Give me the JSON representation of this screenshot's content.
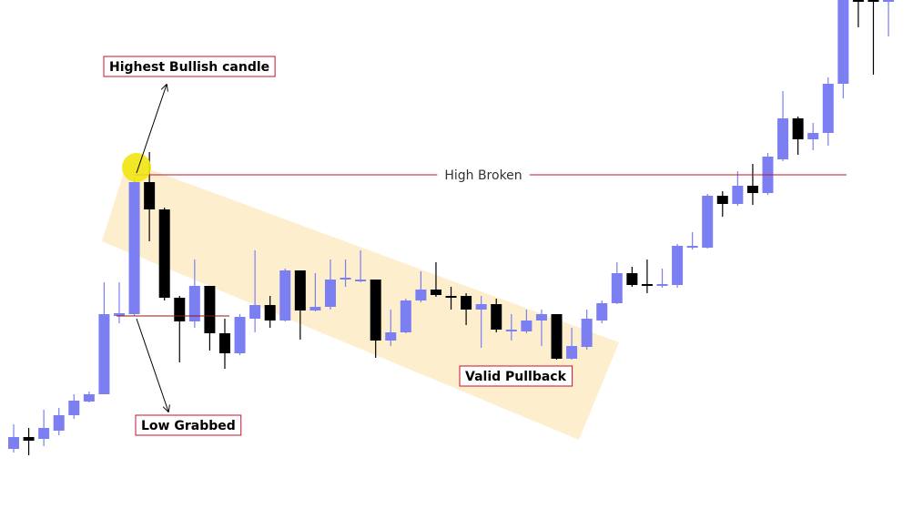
{
  "chart_data": {
    "type": "candlestick",
    "up_color": "#7b7ff2",
    "down_color": "#000000",
    "ylim": [
      0,
      570
    ],
    "open": [
      77,
      90,
      88,
      97,
      114,
      129,
      137,
      223,
      225,
      370,
      340,
      243,
      217,
      256,
      204,
      182,
      220,
      235,
      218,
      273,
      229,
      233,
      263,
      261,
      263,
      196,
      205,
      240,
      252,
      245,
      245,
      230,
      236,
      206,
      206,
      218,
      225,
      176,
      189,
      218,
      237,
      270,
      258,
      256,
      257,
      298,
      298,
      355,
      346,
      366,
      358,
      395,
      440,
      417,
      424,
      478,
      572,
      572,
      568
    ],
    "high": [
      104,
      100,
      120,
      122,
      137,
      140,
      260,
      260,
      375,
      403,
      342,
      245,
      285,
      256,
      220,
      225,
      295,
      245,
      275,
      273,
      270,
      285,
      285,
      295,
      263,
      230,
      242,
      272,
      282,
      255,
      248,
      245,
      242,
      225,
      230,
      230,
      225,
      210,
      230,
      240,
      282,
      277,
      285,
      275,
      302,
      315,
      357,
      360,
      382,
      390,
      402,
      470,
      442,
      435,
      485,
      590,
      590,
      590,
      590
    ],
    "low": [
      73,
      70,
      80,
      92,
      110,
      128,
      137,
      215,
      223,
      305,
      240,
      172,
      210,
      185,
      165,
      180,
      205,
      210,
      217,
      197,
      228,
      230,
      255,
      260,
      177,
      190,
      204,
      238,
      244,
      230,
      213,
      188,
      205,
      196,
      204,
      190,
      175,
      175,
      186,
      215,
      236,
      255,
      248,
      254,
      254,
      296,
      297,
      332,
      344,
      345,
      356,
      393,
      400,
      405,
      410,
      462,
      540,
      488,
      530
    ],
    "close": [
      90,
      86,
      100,
      114,
      130,
      137,
      225,
      226,
      370,
      340,
      243,
      217,
      256,
      204,
      182,
      222,
      235,
      218,
      273,
      229,
      233,
      263,
      265,
      263,
      196,
      205,
      240,
      252,
      246,
      243,
      230,
      236,
      208,
      208,
      218,
      225,
      176,
      190,
      220,
      237,
      270,
      257,
      256,
      258,
      300,
      300,
      355,
      346,
      366,
      358,
      398,
      440,
      417,
      424,
      478,
      580,
      568,
      568,
      572
    ],
    "levels": [
      378,
      223
    ],
    "annotations": {
      "highest": "Highest Bullish candle",
      "low": "Low Grabbed",
      "pullback": "Valid Pullback",
      "high_broken": "High Broken"
    }
  }
}
